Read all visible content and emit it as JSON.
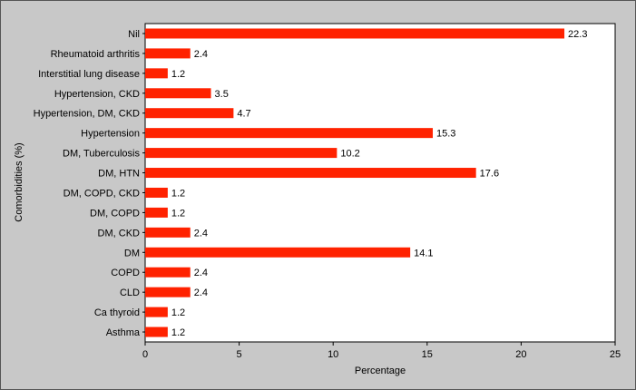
{
  "chart_data": {
    "type": "bar",
    "orientation": "horizontal",
    "title": "",
    "xlabel": "Percentage",
    "ylabel": "Comorbidities (%)",
    "xlim": [
      0,
      25
    ],
    "xticks": [
      0,
      5,
      10,
      15,
      20,
      25
    ],
    "grid": false,
    "legend": "none",
    "bar_color": "#ff2200",
    "background_color": "#c8c8c8",
    "plot_background_color": "#ffffff",
    "categories": [
      "Nil",
      "Rheumatoid arthritis",
      "Interstitial lung disease",
      "Hypertension, CKD",
      "Hypertension, DM, CKD",
      "Hypertension",
      "DM, Tuberculosis",
      "DM, HTN",
      "DM, COPD, CKD",
      "DM, COPD",
      "DM, CKD",
      "DM",
      "COPD",
      "CLD",
      "Ca thyroid",
      "Asthma"
    ],
    "values": [
      22.3,
      2.4,
      1.2,
      3.5,
      4.7,
      15.3,
      10.2,
      17.6,
      1.2,
      1.2,
      2.4,
      14.1,
      2.4,
      2.4,
      1.2,
      1.2
    ],
    "data_labels": [
      "22.3",
      "2.4",
      "1.2",
      "3.5",
      "4.7",
      "15.3",
      "10.2",
      "17.6",
      "1.2",
      "1.2",
      "2.4",
      "14.1",
      "2.4",
      "2.4",
      "1.2",
      "1.2"
    ]
  }
}
